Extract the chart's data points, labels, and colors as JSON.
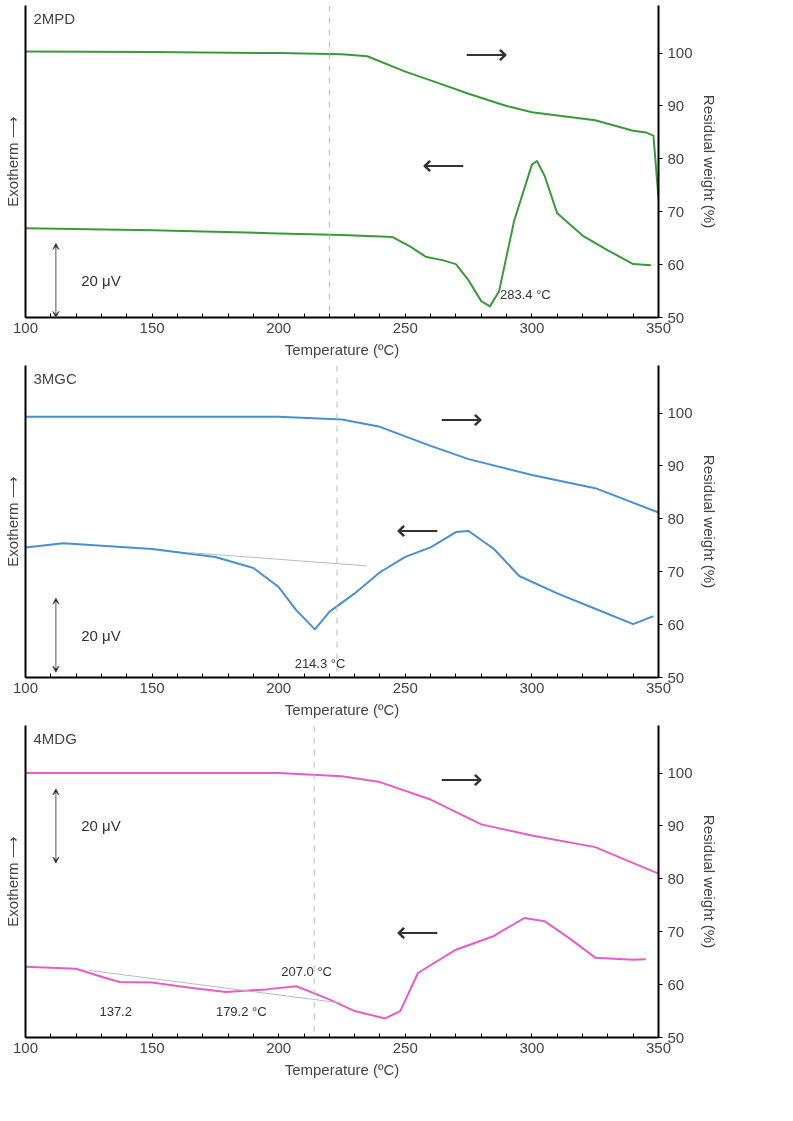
{
  "chart_data": [
    {
      "type": "line",
      "title": "2MPD",
      "xlabel": "Temperature (ºC)",
      "ylabel": "Residual weight (%)",
      "y2label": "Exotherm ⟶",
      "xlim": [
        100,
        350
      ],
      "ylim": [
        50,
        109
      ],
      "xticks": [
        100,
        {
          "value": 110,
          "label": null
        },
        {
          "value": 120,
          "label": null
        },
        {
          "value": 130,
          "label": null
        },
        {
          "value": 140,
          "label": null
        },
        150,
        {
          "value": 160,
          "label": null
        },
        {
          "value": 170,
          "label": null
        },
        {
          "value": 180,
          "label": null
        },
        {
          "value": 190,
          "label": null
        },
        200,
        {
          "value": 210,
          "label": null
        },
        {
          "value": 220,
          "label": null
        },
        {
          "value": 230,
          "label": null
        },
        {
          "value": 240,
          "label": null
        },
        250,
        {
          "value": 260,
          "label": null
        },
        {
          "value": 270,
          "label": null
        },
        {
          "value": 280,
          "label": null
        },
        {
          "value": 290,
          "label": null
        },
        300,
        {
          "value": 310,
          "label": null
        },
        {
          "value": 320,
          "label": null
        },
        {
          "value": 330,
          "label": null
        },
        {
          "value": 340,
          "label": null
        },
        350
      ],
      "yticks": [
        50,
        60,
        70,
        80,
        90,
        100
      ],
      "grid": false,
      "series": [
        {
          "color": "#3a9a3a",
          "x": [
            100,
            150,
            200,
            225,
            235,
            250,
            262,
            275,
            290,
            300,
            325,
            340,
            345,
            348,
            350
          ],
          "values": [
            100.3,
            100.2,
            100,
            99.8,
            99.4,
            96.5,
            94.5,
            92.3,
            90,
            88.8,
            87.3,
            85.3,
            85.0,
            84.4,
            72.5
          ]
        },
        {
          "color": "#3a9a3a",
          "x": [
            100,
            150,
            200,
            225,
            245,
            252,
            258,
            265,
            270,
            275,
            280,
            283.4,
            287,
            293,
            300,
            302,
            305,
            310,
            320,
            330,
            340,
            347
          ],
          "values": [
            66.9,
            66.5,
            65.9,
            65.6,
            65.2,
            63.4,
            61.5,
            60.8,
            60.1,
            57,
            53.1,
            52.1,
            54.9,
            68.3,
            78.9,
            79.6,
            76.8,
            69.7,
            65.5,
            62.7,
            60.1,
            59.9
          ]
        }
      ],
      "ref_lines": [
        {
          "axis": "x",
          "value": 220,
          "color": "#bbbbbb",
          "line_style": "dashed"
        }
      ],
      "annotations": [
        {
          "text": "283.4  °C",
          "x": 283.4,
          "y": 52.1
        },
        "20 μV",
        "⟶",
        "⟵"
      ]
    },
    {
      "type": "line",
      "title": "3MGC",
      "xlabel": "Temperature (ºC)",
      "ylabel": "Residual weight (%)",
      "y2label": "Exotherm ⟶",
      "xlim": [
        100,
        350
      ],
      "ylim": [
        50,
        109
      ],
      "xticks": [
        100,
        {
          "value": 110,
          "label": null
        },
        {
          "value": 120,
          "label": null
        },
        {
          "value": 130,
          "label": null
        },
        {
          "value": 140,
          "label": null
        },
        150,
        {
          "value": 160,
          "label": null
        },
        {
          "value": 170,
          "label": null
        },
        {
          "value": 180,
          "label": null
        },
        {
          "value": 190,
          "label": null
        },
        200,
        {
          "value": 210,
          "label": null
        },
        {
          "value": 220,
          "label": null
        },
        {
          "value": 230,
          "label": null
        },
        {
          "value": 240,
          "label": null
        },
        250,
        {
          "value": 260,
          "label": null
        },
        {
          "value": 270,
          "label": null
        },
        {
          "value": 280,
          "label": null
        },
        {
          "value": 290,
          "label": null
        },
        300,
        {
          "value": 310,
          "label": null
        },
        {
          "value": 320,
          "label": null
        },
        {
          "value": 330,
          "label": null
        },
        {
          "value": 340,
          "label": null
        },
        350
      ],
      "yticks": [
        50,
        60,
        70,
        80,
        90,
        100
      ],
      "grid": false,
      "series": [
        {
          "color": "#4a8fd4",
          "x": [
            100,
            150,
            200,
            225,
            240,
            260,
            275,
            300,
            325,
            350
          ],
          "values": [
            99.3,
            99.3,
            99.3,
            98.8,
            97.4,
            93.8,
            91.3,
            88.3,
            85.8,
            81.2
          ]
        },
        {
          "color": "#4a8fd4",
          "x": [
            100,
            115,
            150,
            175,
            190,
            200,
            207,
            214.3,
            220,
            230,
            240,
            250,
            260,
            270,
            275,
            285,
            295,
            310,
            325,
            340,
            348
          ],
          "values": [
            74.6,
            75.4,
            74.3,
            72.8,
            70.7,
            67.1,
            62.7,
            59.1,
            62.4,
            65.9,
            69.9,
            72.8,
            74.6,
            77.5,
            77.7,
            74.3,
            69.2,
            65.9,
            63,
            60.1,
            61.6
          ]
        },
        {
          "color": "#bbbbbb",
          "x": [
            165,
            235
          ],
          "values": [
            73.6,
            71.1
          ]
        }
      ],
      "ref_lines": [
        {
          "axis": "x",
          "value": 223,
          "color": "#bbbbbb",
          "line_style": "dashed"
        }
      ],
      "annotations": [
        {
          "text": "214.3  °C",
          "x": 214.3,
          "y": 59.1
        },
        "20 μV",
        "⟶",
        "⟵"
      ]
    },
    {
      "type": "line",
      "title": "4MDG",
      "xlabel": "Temperature (ºC)",
      "ylabel": "Residual weight (%)",
      "y2label": "Exotherm ⟶",
      "xlim": [
        100,
        350
      ],
      "ylim": [
        50,
        109
      ],
      "xticks": [
        100,
        {
          "value": 110,
          "label": null
        },
        {
          "value": 120,
          "label": null
        },
        {
          "value": 130,
          "label": null
        },
        {
          "value": 140,
          "label": null
        },
        150,
        {
          "value": 160,
          "label": null
        },
        {
          "value": 170,
          "label": null
        },
        {
          "value": 180,
          "label": null
        },
        {
          "value": 190,
          "label": null
        },
        200,
        {
          "value": 210,
          "label": null
        },
        {
          "value": 220,
          "label": null
        },
        {
          "value": 230,
          "label": null
        },
        {
          "value": 240,
          "label": null
        },
        250,
        {
          "value": 260,
          "label": null
        },
        {
          "value": 270,
          "label": null
        },
        {
          "value": 280,
          "label": null
        },
        {
          "value": 290,
          "label": null
        },
        300,
        {
          "value": 310,
          "label": null
        },
        {
          "value": 320,
          "label": null
        },
        {
          "value": 330,
          "label": null
        },
        {
          "value": 340,
          "label": null
        },
        350
      ],
      "yticks": [
        50,
        60,
        70,
        80,
        90,
        100
      ],
      "grid": false,
      "series": [
        {
          "color": "#e85cc8",
          "x": [
            100,
            200,
            225,
            240,
            260,
            280,
            300,
            325,
            350
          ],
          "values": [
            100,
            100,
            99.4,
            98.3,
            95,
            90.3,
            88.2,
            86,
            81
          ]
        },
        {
          "color": "#e85cc8",
          "x": [
            100,
            120,
            130,
            137.2,
            150,
            165,
            179.2,
            195,
            207,
            220,
            230,
            242,
            248,
            255,
            270,
            285,
            297,
            305,
            315,
            325,
            340,
            345
          ],
          "values": [
            63.4,
            63,
            61.5,
            60.5,
            60.4,
            59.4,
            58.6,
            59.1,
            59.7,
            57.2,
            55,
            53.6,
            55,
            62.2,
            66.6,
            69.2,
            72.6,
            72,
            68.7,
            65.1,
            64.7,
            64.8
          ]
        },
        {
          "color": "#bbbbbb",
          "x": [
            125,
            225
          ],
          "values": [
            62.7,
            56.5
          ]
        }
      ],
      "ref_lines": [
        {
          "axis": "x",
          "value": 214,
          "color": "#bbbbbb",
          "line_style": "dashed"
        }
      ],
      "annotations": [
        {
          "text": "137.2",
          "x": 137.2,
          "y": 60.5
        },
        {
          "text": "179.2  °C",
          "x": 179.2,
          "y": 58.6
        },
        {
          "text": "207.0  °C",
          "x": 207.0,
          "y": 59.7
        },
        "20 μV",
        "⟶",
        "⟵"
      ]
    }
  ]
}
